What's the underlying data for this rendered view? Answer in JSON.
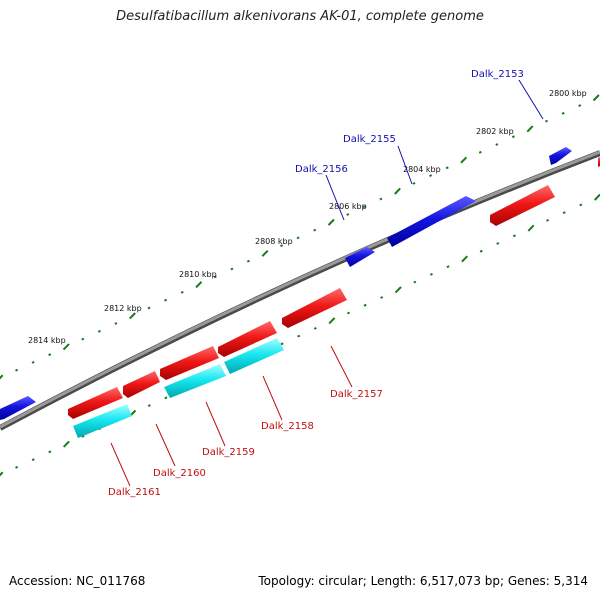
{
  "title": "Desulfatibacillum alkenivorans AK-01, complete genome",
  "footer": {
    "accession": "Accession: NC_011768",
    "summary": "Topology: circular; Length: 6,517,073 bp; Genes: 5,314"
  },
  "colors": {
    "backbone": "#7a7a7a",
    "tick": "#1a7a1a",
    "forward": "#1010d8",
    "reverse": "#e01010",
    "rna": "#10d8e0",
    "label_forward": "#1010b0",
    "label_reverse": "#c01010"
  },
  "scale_labels": [
    {
      "text": "2800 kbp"
    },
    {
      "text": "2802 kbp"
    },
    {
      "text": "2804 kbp"
    },
    {
      "text": "2806 kbp"
    },
    {
      "text": "2808 kbp"
    },
    {
      "text": "2810 kbp"
    },
    {
      "text": "2812 kbp"
    },
    {
      "text": "2814 kbp"
    }
  ],
  "gene_labels": [
    {
      "text": "Dalk_2153",
      "strand": "forward"
    },
    {
      "text": "Dalk_2155",
      "strand": "forward"
    },
    {
      "text": "Dalk_2156",
      "strand": "forward"
    },
    {
      "text": "Dalk_2157",
      "strand": "reverse"
    },
    {
      "text": "Dalk_2158",
      "strand": "reverse"
    },
    {
      "text": "Dalk_2159",
      "strand": "reverse"
    },
    {
      "text": "Dalk_2160",
      "strand": "reverse"
    },
    {
      "text": "Dalk_2161",
      "strand": "reverse"
    }
  ]
}
